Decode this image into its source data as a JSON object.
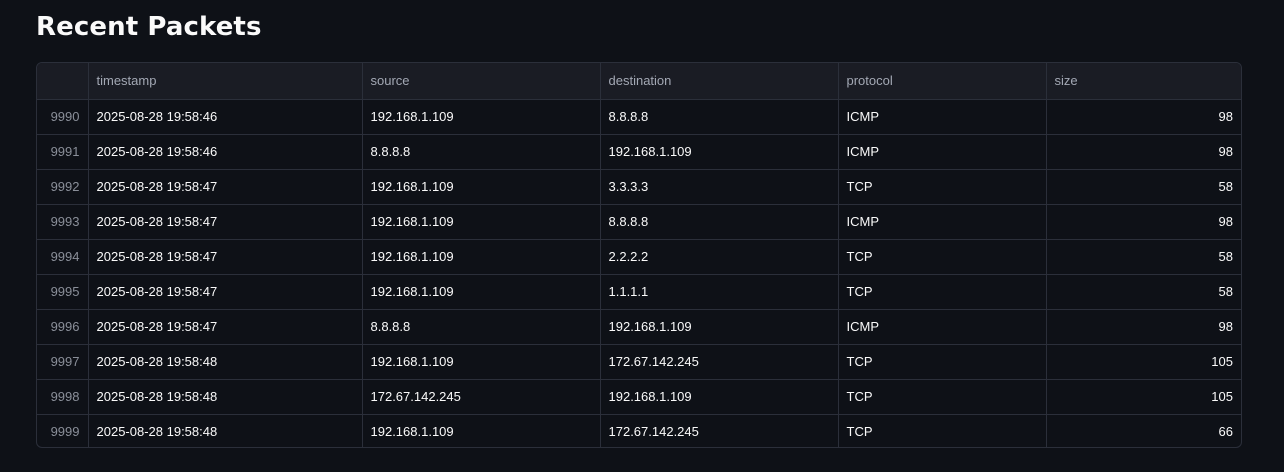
{
  "page": {
    "title": "Recent Packets"
  },
  "table": {
    "columns": [
      "",
      "timestamp",
      "source",
      "destination",
      "protocol",
      "size"
    ],
    "rows": [
      {
        "index": "9990",
        "timestamp": "2025-08-28 19:58:46",
        "source": "192.168.1.109",
        "destination": "8.8.8.8",
        "protocol": "ICMP",
        "size": "98"
      },
      {
        "index": "9991",
        "timestamp": "2025-08-28 19:58:46",
        "source": "8.8.8.8",
        "destination": "192.168.1.109",
        "protocol": "ICMP",
        "size": "98"
      },
      {
        "index": "9992",
        "timestamp": "2025-08-28 19:58:47",
        "source": "192.168.1.109",
        "destination": "3.3.3.3",
        "protocol": "TCP",
        "size": "58"
      },
      {
        "index": "9993",
        "timestamp": "2025-08-28 19:58:47",
        "source": "192.168.1.109",
        "destination": "8.8.8.8",
        "protocol": "ICMP",
        "size": "98"
      },
      {
        "index": "9994",
        "timestamp": "2025-08-28 19:58:47",
        "source": "192.168.1.109",
        "destination": "2.2.2.2",
        "protocol": "TCP",
        "size": "58"
      },
      {
        "index": "9995",
        "timestamp": "2025-08-28 19:58:47",
        "source": "192.168.1.109",
        "destination": "1.1.1.1",
        "protocol": "TCP",
        "size": "58"
      },
      {
        "index": "9996",
        "timestamp": "2025-08-28 19:58:47",
        "source": "8.8.8.8",
        "destination": "192.168.1.109",
        "protocol": "ICMP",
        "size": "98"
      },
      {
        "index": "9997",
        "timestamp": "2025-08-28 19:58:48",
        "source": "192.168.1.109",
        "destination": "172.67.142.245",
        "protocol": "TCP",
        "size": "105"
      },
      {
        "index": "9998",
        "timestamp": "2025-08-28 19:58:48",
        "source": "172.67.142.245",
        "destination": "192.168.1.109",
        "protocol": "TCP",
        "size": "105"
      },
      {
        "index": "9999",
        "timestamp": "2025-08-28 19:58:48",
        "source": "192.168.1.109",
        "destination": "172.67.142.245",
        "protocol": "TCP",
        "size": "66"
      }
    ]
  },
  "colors": {
    "background": "#0e1117",
    "header_background": "#1a1c24",
    "border": "#2b2f3a",
    "text": "#fafafa",
    "muted_text": "#a3a8b4"
  }
}
